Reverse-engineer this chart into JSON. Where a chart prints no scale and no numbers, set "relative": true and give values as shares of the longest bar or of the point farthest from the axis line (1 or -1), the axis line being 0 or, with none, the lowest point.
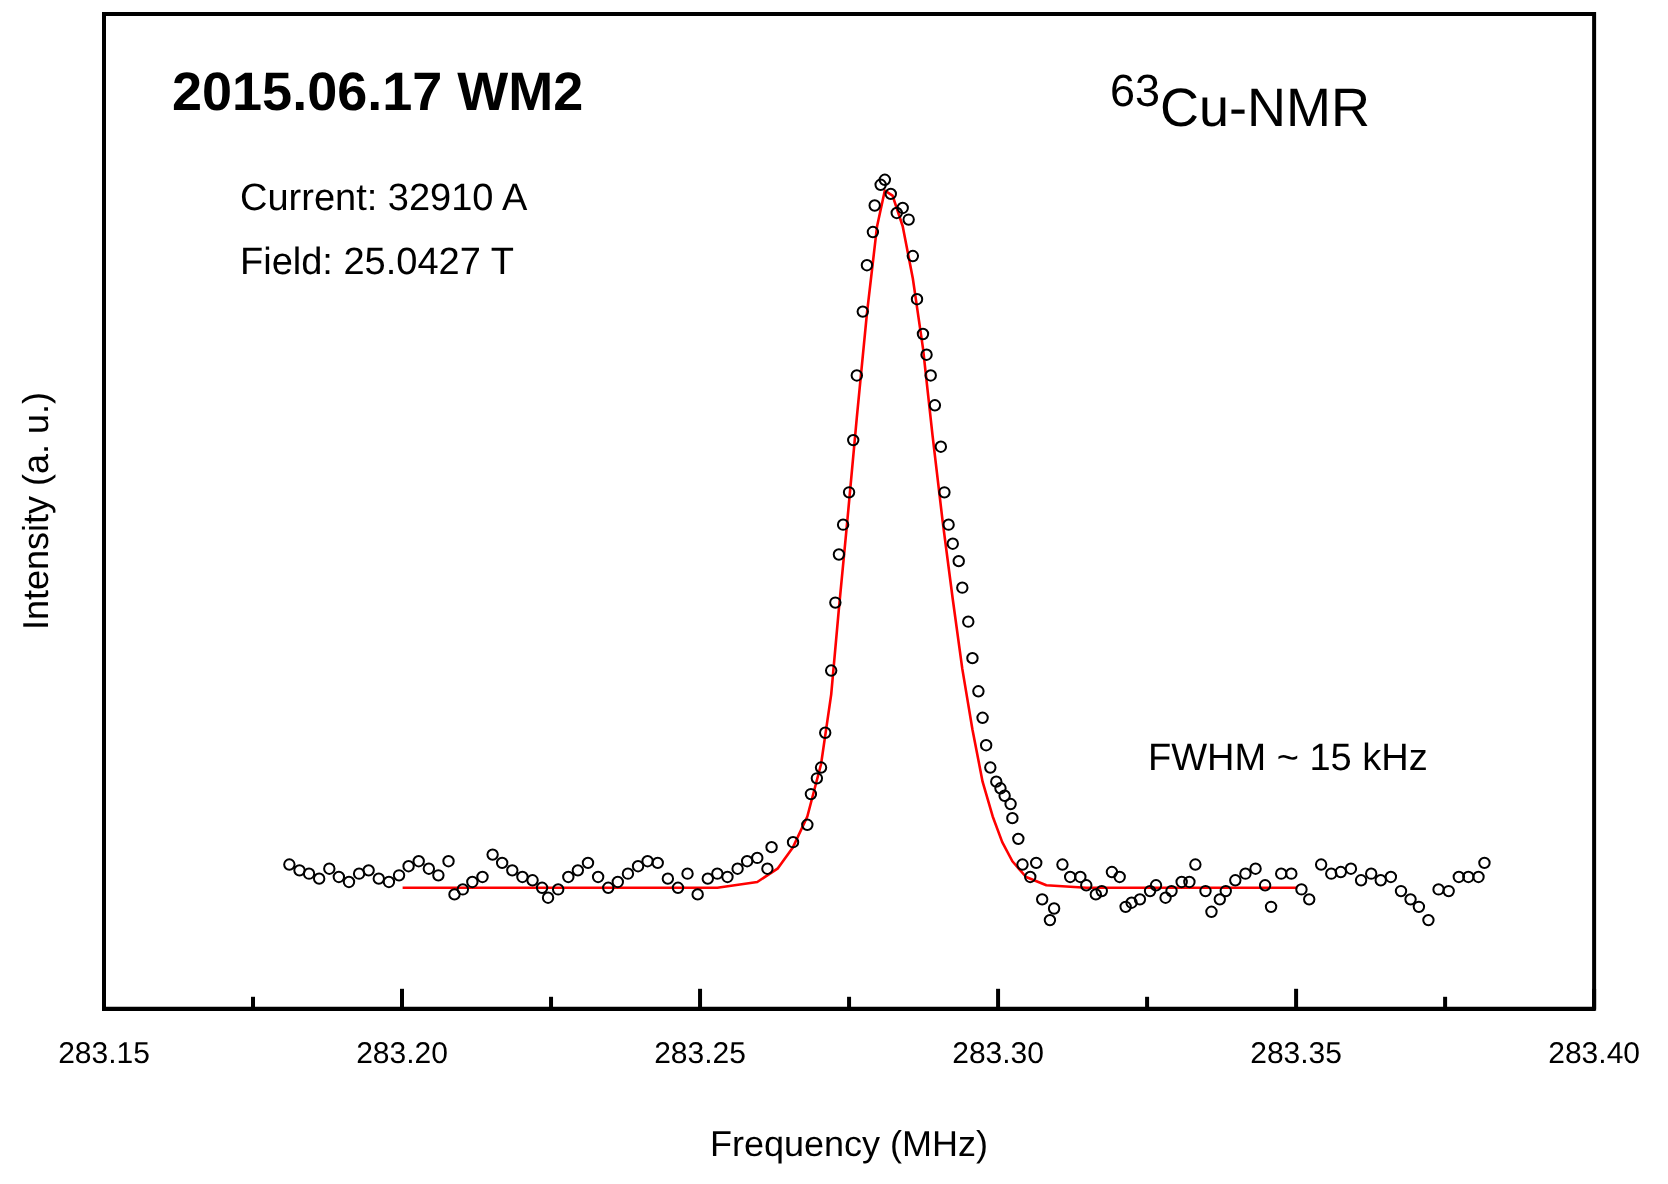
{
  "chart_data": {
    "type": "scatter",
    "title": "2015.06.17 WM2",
    "xlabel": "Frequency (MHz)",
    "ylabel": "Intensity (a. u.)",
    "annotations": [
      "$^{63}$Cu-NMR",
      "Current: 32910 A",
      "Field: 25.0427 T",
      "FWHM ~ 15 kHz"
    ],
    "relative": true,
    "tick_labels": "x",
    "xlim": [
      283.15,
      283.4
    ],
    "xticks": [
      {
        "value": 283.15,
        "label": "283.15"
      },
      {
        "value": 283.175,
        "label": null
      },
      {
        "value": 283.2,
        "label": "283.20"
      },
      {
        "value": 283.225,
        "label": null
      },
      {
        "value": 283.25,
        "label": "283.25"
      },
      {
        "value": 283.275,
        "label": null
      },
      {
        "value": 283.3,
        "label": "283.30"
      },
      {
        "value": 283.325,
        "label": null
      },
      {
        "value": 283.35,
        "label": "283.35"
      },
      {
        "value": 283.375,
        "label": null
      },
      {
        "value": 283.4,
        "label": "283.40"
      }
    ],
    "series": [
      {
        "type": "scatter",
        "marker": "circle",
        "color": "#000000",
        "x": [
          283.1811,
          283.1828,
          283.1844,
          283.1861,
          283.1878,
          283.1894,
          283.1911,
          283.1928,
          283.1944,
          283.1961,
          283.1978,
          283.1995,
          283.2011,
          283.2028,
          283.2045,
          283.2061,
          283.2078,
          283.2088,
          283.2102,
          283.2118,
          283.2135,
          283.2152,
          283.2168,
          283.2185,
          283.2202,
          283.2219,
          283.2235,
          283.2245,
          283.2262,
          283.2279,
          283.2295,
          283.2312,
          283.2329,
          283.2346,
          283.2362,
          283.2379,
          283.2396,
          283.2412,
          283.2429,
          283.2446,
          283.2463,
          283.2479,
          283.2496,
          283.2513,
          283.2529,
          283.2546,
          283.2563,
          283.2579,
          283.2596,
          283.2613,
          283.262,
          283.2656,
          283.268,
          283.2686,
          283.2696,
          283.2703,
          283.271,
          283.272,
          283.2727,
          283.2733,
          283.274,
          283.275,
          283.2757,
          283.2763,
          283.2773,
          283.278,
          283.279,
          283.2793,
          283.2803,
          283.281,
          283.282,
          283.283,
          283.284,
          283.285,
          283.2857,
          283.2864,
          283.2874,
          283.288,
          283.2887,
          283.2894,
          283.2904,
          283.291,
          283.2917,
          283.2924,
          283.2934,
          283.294,
          283.295,
          283.2957,
          283.2967,
          283.2974,
          283.298,
          283.2987,
          283.2997,
          283.3004,
          283.3011,
          283.3021,
          283.3024,
          283.3034,
          283.3041,
          283.3054,
          283.3064,
          283.3074,
          283.3087,
          283.3094,
          283.3108,
          283.3121,
          283.3138,
          283.3148,
          283.3164,
          283.3174,
          283.3191,
          283.3204,
          283.3214,
          283.3224,
          283.3238,
          283.3255,
          283.3265,
          283.3281,
          283.3291,
          283.3308,
          283.3321,
          283.3331,
          283.3348,
          283.3358,
          283.3372,
          283.3382,
          283.3398,
          283.3415,
          283.3432,
          283.3448,
          283.3458,
          283.3475,
          283.3492,
          283.3509,
          283.3522,
          283.3542,
          283.3559,
          283.3575,
          283.3592,
          283.3609,
          283.3626,
          283.3642,
          283.3659,
          283.3676,
          283.3692,
          283.3706,
          283.3722,
          283.3739,
          283.3756,
          283.3773,
          283.3789,
          283.3806,
          283.3816
        ],
        "values": [
          0.174,
          0.167,
          0.163,
          0.157,
          0.169,
          0.159,
          0.153,
          0.163,
          0.167,
          0.157,
          0.153,
          0.161,
          0.172,
          0.178,
          0.169,
          0.161,
          0.178,
          0.138,
          0.144,
          0.153,
          0.159,
          0.186,
          0.176,
          0.167,
          0.159,
          0.155,
          0.146,
          0.134,
          0.144,
          0.159,
          0.167,
          0.176,
          0.159,
          0.146,
          0.153,
          0.163,
          0.172,
          0.178,
          0.176,
          0.157,
          0.146,
          0.163,
          0.138,
          0.157,
          0.163,
          0.159,
          0.169,
          0.178,
          0.182,
          0.169,
          0.195,
          0.201,
          0.222,
          0.259,
          0.278,
          0.291,
          0.333,
          0.408,
          0.49,
          0.548,
          0.584,
          0.623,
          0.686,
          0.764,
          0.841,
          0.897,
          0.937,
          0.969,
          0.994,
          1,
          0.983,
          0.96,
          0.966,
          0.952,
          0.908,
          0.856,
          0.814,
          0.789,
          0.764,
          0.728,
          0.678,
          0.623,
          0.584,
          0.561,
          0.54,
          0.508,
          0.467,
          0.423,
          0.383,
          0.351,
          0.318,
          0.291,
          0.274,
          0.266,
          0.257,
          0.247,
          0.23,
          0.205,
          0.174,
          0.159,
          0.176,
          0.132,
          0.107,
          0.121,
          0.174,
          0.159,
          0.159,
          0.149,
          0.138,
          0.142,
          0.165,
          0.159,
          0.123,
          0.128,
          0.132,
          0.142,
          0.149,
          0.134,
          0.142,
          0.153,
          0.153,
          0.174,
          0.142,
          0.117,
          0.132,
          0.142,
          0.155,
          0.163,
          0.169,
          0.149,
          0.123,
          0.163,
          0.163,
          0.144,
          0.132,
          0.174,
          0.163,
          0.165,
          0.169,
          0.155,
          0.163,
          0.155,
          0.159,
          0.142,
          0.132,
          0.123,
          0.107,
          0.144,
          0.142,
          0.159,
          0.159,
          0.159,
          0.176
        ]
      },
      {
        "type": "line",
        "marker": "none",
        "color": "#ff0000",
        "x": [
          283.2001,
          283.2529,
          283.2596,
          283.263,
          283.2656,
          283.268,
          283.2703,
          283.272,
          283.2733,
          283.2747,
          283.2763,
          283.278,
          283.2797,
          283.281,
          283.2823,
          283.284,
          283.2857,
          283.2874,
          283.289,
          283.2907,
          283.2924,
          283.294,
          283.2957,
          283.2974,
          283.2991,
          283.3007,
          283.3024,
          283.3047,
          283.3081,
          283.3148,
          283.3502
        ],
        "values": [
          0.146,
          0.146,
          0.153,
          0.169,
          0.195,
          0.232,
          0.295,
          0.379,
          0.483,
          0.588,
          0.713,
          0.839,
          0.944,
          0.987,
          0.981,
          0.944,
          0.881,
          0.797,
          0.692,
          0.588,
          0.494,
          0.41,
          0.337,
          0.274,
          0.232,
          0.201,
          0.178,
          0.159,
          0.149,
          0.146,
          0.146
        ]
      }
    ]
  }
}
